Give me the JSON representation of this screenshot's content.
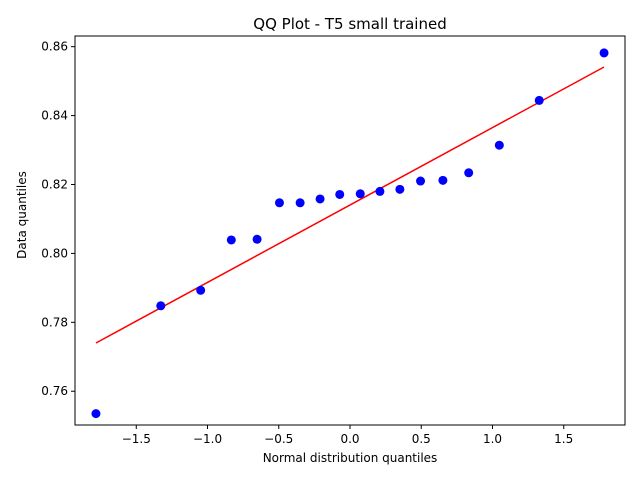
{
  "chart_data": {
    "type": "scatter",
    "title": "QQ Plot - T5 small trained",
    "xlabel": "Normal distribution quantiles",
    "ylabel": "Data quantiles",
    "xlim": [
      -1.93,
      1.93
    ],
    "ylim": [
      0.7502,
      0.8631
    ],
    "xticks": [
      -1.5,
      -1.0,
      -0.5,
      0.0,
      0.5,
      1.0,
      1.5
    ],
    "xtick_labels": [
      "−1.5",
      "−1.0",
      "−0.5",
      "0.0",
      "0.5",
      "1.0",
      "1.5"
    ],
    "yticks": [
      0.76,
      0.78,
      0.8,
      0.82,
      0.84,
      0.86
    ],
    "ytick_labels": [
      "0.76",
      "0.78",
      "0.80",
      "0.82",
      "0.84",
      "0.86"
    ],
    "grid": false,
    "points": {
      "color": "#0000ff",
      "x": [
        -1.783,
        -1.328,
        -1.048,
        -0.833,
        -0.652,
        -0.495,
        -0.35,
        -0.21,
        -0.072,
        0.072,
        0.21,
        0.35,
        0.495,
        0.652,
        0.833,
        1.048,
        1.328,
        1.783
      ],
      "y": [
        0.7535,
        0.7848,
        0.7893,
        0.8039,
        0.8041,
        0.8147,
        0.8147,
        0.8158,
        0.8171,
        0.8173,
        0.818,
        0.8186,
        0.821,
        0.8212,
        0.8234,
        0.8314,
        0.8444,
        0.8582
      ]
    },
    "fit_line": {
      "color": "#ff0000",
      "x": [
        -1.783,
        1.783
      ],
      "y": [
        0.774,
        0.8541
      ]
    }
  }
}
